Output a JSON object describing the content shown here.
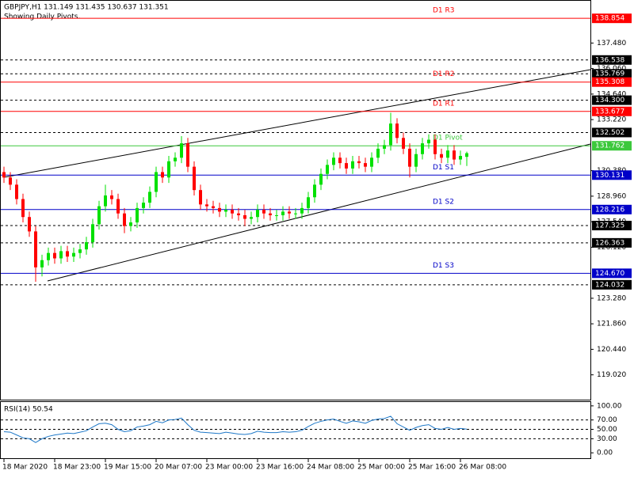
{
  "chart_data": {
    "type": "candlestick",
    "title": "GBPJPY,H1  131.149 131.435 130.637 131.351",
    "subtitle": "Showing Daily Pivots.",
    "up_color": "#00e000",
    "down_color": "#ff0000",
    "categories": [
      "18 Mar 2020",
      null,
      null,
      null,
      null,
      null,
      null,
      null,
      "18 Mar 23:00",
      null,
      null,
      null,
      null,
      null,
      null,
      null,
      "19 Mar 15:00",
      null,
      null,
      null,
      null,
      null,
      null,
      null,
      "20 Mar 07:00",
      null,
      null,
      null,
      null,
      null,
      null,
      null,
      "23 Mar 00:00",
      null,
      null,
      null,
      null,
      null,
      null,
      null,
      "23 Mar 16:00",
      null,
      null,
      null,
      null,
      null,
      null,
      null,
      "24 Mar 08:00",
      null,
      null,
      null,
      null,
      null,
      null,
      null,
      "25 Mar 00:00",
      null,
      null,
      null,
      null,
      null,
      null,
      null,
      "25 Mar 16:00",
      null,
      null,
      null,
      null,
      null,
      null,
      null,
      "26 Mar 08:00",
      null
    ],
    "open": [
      130.3,
      130.0,
      129.6,
      128.8,
      127.8,
      127.0,
      125.0,
      125.4,
      125.8,
      125.5,
      125.9,
      125.6,
      125.8,
      126.0,
      126.4,
      127.4,
      128.4,
      129.0,
      128.8,
      128.0,
      127.3,
      127.5,
      128.3,
      128.6,
      129.2,
      130.3,
      130.0,
      130.9,
      131.1,
      131.9,
      130.6,
      129.3,
      128.5,
      128.4,
      128.3,
      128.1,
      128.2,
      128.0,
      127.9,
      127.7,
      127.8,
      128.2,
      128.0,
      127.9,
      127.9,
      128.1,
      128.0,
      128.0,
      128.3,
      128.9,
      129.6,
      130.2,
      130.7,
      131.1,
      130.8,
      130.5,
      130.9,
      130.8,
      130.6,
      131.1,
      131.6,
      131.8,
      133.0,
      132.2,
      131.6,
      130.6,
      131.3,
      131.9,
      132.1,
      131.3,
      131.1,
      131.5,
      131.0,
      131.149
    ],
    "high": [
      130.6,
      130.3,
      129.9,
      129.1,
      128.1,
      127.3,
      125.7,
      126.1,
      126.1,
      126.2,
      126.2,
      126.1,
      126.3,
      126.7,
      127.7,
      128.7,
      129.6,
      129.3,
      129.1,
      128.3,
      127.8,
      128.6,
      128.9,
      129.5,
      130.6,
      130.6,
      131.2,
      131.4,
      132.3,
      132.2,
      130.9,
      129.6,
      128.8,
      128.7,
      128.6,
      128.5,
      128.5,
      128.3,
      128.2,
      128.1,
      128.5,
      128.5,
      128.3,
      128.2,
      128.4,
      128.4,
      128.3,
      128.6,
      129.2,
      129.9,
      130.5,
      131.0,
      131.4,
      131.4,
      131.1,
      131.2,
      131.2,
      131.1,
      131.4,
      131.9,
      132.1,
      133.6,
      133.3,
      132.5,
      131.9,
      131.6,
      132.2,
      132.4,
      132.4,
      131.6,
      131.8,
      131.8,
      131.5,
      131.435
    ],
    "low": [
      129.7,
      129.3,
      128.5,
      127.5,
      126.7,
      124.2,
      124.5,
      125.1,
      125.2,
      125.2,
      125.3,
      125.3,
      125.5,
      125.7,
      126.1,
      127.1,
      128.1,
      128.5,
      127.7,
      126.9,
      127.0,
      127.2,
      128.0,
      128.3,
      128.9,
      129.7,
      129.7,
      130.6,
      130.8,
      130.3,
      129.0,
      128.2,
      128.1,
      128.0,
      127.8,
      127.8,
      127.7,
      127.6,
      127.3,
      127.4,
      127.5,
      127.7,
      127.6,
      127.6,
      127.6,
      127.7,
      127.7,
      127.7,
      128.0,
      128.6,
      129.3,
      129.9,
      130.4,
      130.5,
      130.2,
      130.2,
      130.5,
      130.3,
      130.3,
      130.8,
      131.3,
      131.5,
      131.9,
      131.3,
      130.0,
      130.3,
      131.0,
      131.6,
      131.0,
      130.8,
      130.8,
      130.7,
      130.7,
      130.637
    ],
    "close": [
      130.0,
      129.6,
      128.8,
      127.8,
      127.0,
      125.0,
      125.4,
      125.8,
      125.5,
      125.9,
      125.6,
      125.8,
      126.0,
      126.4,
      127.4,
      128.4,
      129.0,
      128.8,
      128.0,
      127.3,
      127.5,
      128.3,
      128.6,
      129.2,
      130.3,
      130.0,
      130.9,
      131.1,
      131.9,
      130.6,
      129.3,
      128.5,
      128.4,
      128.3,
      128.1,
      128.2,
      128.0,
      127.9,
      127.7,
      127.8,
      128.2,
      128.0,
      127.9,
      127.9,
      128.1,
      128.0,
      128.0,
      128.3,
      128.9,
      129.6,
      130.2,
      130.7,
      131.1,
      130.8,
      130.5,
      130.9,
      130.8,
      130.6,
      131.1,
      131.6,
      131.8,
      133.0,
      132.2,
      131.6,
      130.6,
      131.3,
      131.9,
      132.1,
      131.3,
      131.1,
      131.5,
      131.0,
      131.2,
      131.351
    ],
    "ylim": [
      117.64,
      139.83
    ],
    "yticks": [
      {
        "value": 137.48,
        "label": "137.480"
      },
      {
        "value": 136.06,
        "label": "136.060"
      },
      {
        "value": 134.64,
        "label": "134.640"
      },
      {
        "value": 133.22,
        "label": "133.220"
      },
      {
        "value": 130.38,
        "label": "130.380"
      },
      {
        "value": 128.96,
        "label": "128.960"
      },
      {
        "value": 127.54,
        "label": "127.540"
      },
      {
        "value": 126.12,
        "label": "126.120"
      },
      {
        "value": 123.28,
        "label": "123.280"
      },
      {
        "value": 121.86,
        "label": "121.860"
      },
      {
        "value": 120.44,
        "label": "120.440"
      },
      {
        "value": 119.02,
        "label": "119.020"
      }
    ],
    "pivots": [
      {
        "name": "D1 R3",
        "value": 138.854,
        "color": "#ff0000"
      },
      {
        "name": "D1 R2",
        "value": 135.308,
        "color": "#ff0000"
      },
      {
        "name": "D1 R1",
        "value": 133.677,
        "color": "#ff0000"
      },
      {
        "name": "D1 Pivot",
        "value": 131.762,
        "color": "#3cc83c"
      },
      {
        "name": "D1 S1",
        "value": 130.131,
        "color": "#0000c8"
      },
      {
        "name": "D1 S2",
        "value": 128.216,
        "color": "#0000c8"
      },
      {
        "name": "D1 S3",
        "value": {
          "value": 124.67,
          "label": "124.670"
        },
        "color": "#0000c8"
      }
    ],
    "dashed_levels": [
      136.538,
      135.769,
      {
        "value": 134.3,
        "label": "134.300"
      },
      132.502,
      127.325,
      126.363,
      124.032
    ],
    "rsi": {
      "label": "RSI(14) 50.54",
      "color": "#1e78c8",
      "values": [
        45,
        44,
        38,
        32,
        30,
        22,
        30,
        35,
        38,
        40,
        42,
        41,
        44,
        47,
        55,
        62,
        63,
        60,
        50,
        45,
        47,
        55,
        57,
        60,
        67,
        64,
        70,
        71,
        74,
        60,
        48,
        44,
        43,
        42,
        41,
        44,
        42,
        40,
        39,
        41,
        46,
        44,
        43,
        43,
        45,
        44,
        45,
        48,
        56,
        63,
        67,
        70,
        72,
        67,
        63,
        68,
        66,
        63,
        69,
        72,
        73,
        78,
        62,
        55,
        48,
        54,
        58,
        60,
        52,
        50,
        54,
        50,
        52,
        50.54
      ],
      "ylim": [
        -11.5,
        108.2
      ],
      "yticks": [
        {
          "value": 100,
          "label": "100.00"
        },
        {
          "value": 70,
          "label": "70.00"
        },
        {
          "value": 50,
          "label": "50.00"
        },
        {
          "value": 30,
          "label": "30.00"
        },
        {
          "value": 0,
          "label": "0.00"
        }
      ],
      "dashed": [
        70,
        50,
        30
      ]
    }
  }
}
